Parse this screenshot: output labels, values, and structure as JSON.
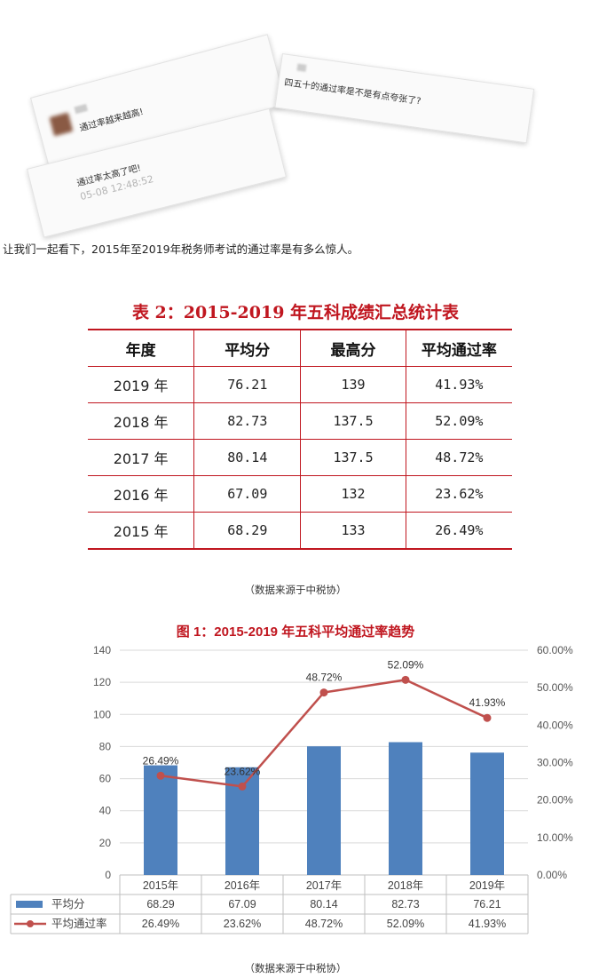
{
  "comments": {
    "c1": {
      "text": "通过率越来越高!"
    },
    "c2": {
      "text": "四五十的通过率是不是有点夸张了?"
    },
    "c3": {
      "text": "通过率太高了吧!",
      "time": "05-08 12:48:52"
    }
  },
  "intro": "让我们一起看下，2015年至2019年税务师考试的通过率是有多么惊人。",
  "table": {
    "title": "表 2：2015-2019 年五科成绩汇总统计表",
    "headers": [
      "年度",
      "平均分",
      "最高分",
      "平均通过率"
    ],
    "rows": [
      [
        "2019 年",
        "76.21",
        "139",
        "41.93%"
      ],
      [
        "2018 年",
        "82.73",
        "137.5",
        "52.09%"
      ],
      [
        "2017 年",
        "80.14",
        "137.5",
        "48.72%"
      ],
      [
        "2016 年",
        "67.09",
        "132",
        "23.62%"
      ],
      [
        "2015 年",
        "68.29",
        "133",
        "26.49%"
      ]
    ]
  },
  "source_note": "（数据来源于中税协）",
  "chart_data": {
    "type": "bar",
    "title": "图 1：2015-2019 年五科平均通过率趋势",
    "categories": [
      "2015年",
      "2016年",
      "2017年",
      "2018年",
      "2019年"
    ],
    "series": [
      {
        "name": "平均分",
        "type": "bar",
        "axis": "left",
        "values": [
          68.29,
          67.09,
          80.14,
          82.73,
          76.21
        ],
        "display": [
          "68.29",
          "67.09",
          "80.14",
          "82.73",
          "76.21"
        ],
        "color": "#4f81bd"
      },
      {
        "name": "平均通过率",
        "type": "line",
        "axis": "right",
        "values": [
          26.49,
          23.62,
          48.72,
          52.09,
          41.93
        ],
        "display": [
          "26.49%",
          "23.62%",
          "48.72%",
          "52.09%",
          "41.93%"
        ],
        "color": "#c0504d"
      }
    ],
    "y_left": {
      "min": 0,
      "max": 140,
      "ticks": [
        "0",
        "20",
        "40",
        "60",
        "80",
        "100",
        "120",
        "140"
      ]
    },
    "y_right": {
      "min": 0,
      "max": 60,
      "ticks": [
        "0.00%",
        "10.00%",
        "20.00%",
        "30.00%",
        "40.00%",
        "50.00%",
        "60.00%"
      ]
    },
    "grid": true,
    "legend": "data-table-bottom"
  }
}
